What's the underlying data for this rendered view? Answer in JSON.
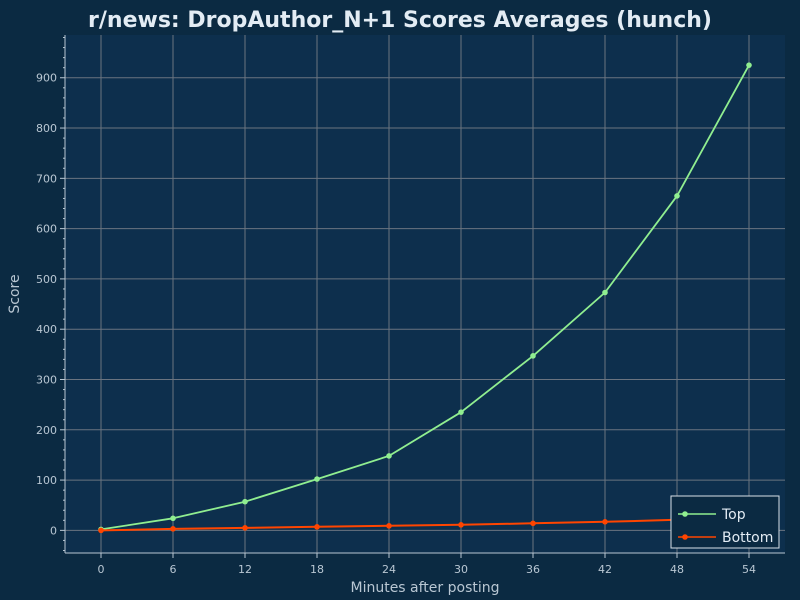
{
  "chart_data": {
    "type": "line",
    "title": "r/news: DropAuthor_N+1 Scores Averages (hunch)",
    "xlabel": "Minutes after posting",
    "ylabel": "Score",
    "x": [
      0,
      6,
      12,
      18,
      24,
      30,
      36,
      42,
      48,
      54
    ],
    "x_ticks": [
      0,
      6,
      12,
      18,
      24,
      30,
      36,
      42,
      48,
      54
    ],
    "y_ticks": [
      0,
      100,
      200,
      300,
      400,
      500,
      600,
      700,
      800,
      900
    ],
    "xlim": [
      -3,
      57
    ],
    "ylim": [
      -45,
      985
    ],
    "grid": true,
    "legend_position": "bottom-right",
    "series": [
      {
        "name": "Top",
        "color": "#90ee90",
        "values": [
          2,
          24,
          57,
          102,
          148,
          235,
          347,
          473,
          665,
          925
        ]
      },
      {
        "name": "Bottom",
        "color": "#ff4500",
        "values": [
          0,
          3,
          5,
          7,
          9,
          11,
          14,
          17,
          21,
          27
        ]
      }
    ]
  },
  "colors": {
    "page_background": "#0b2a42",
    "plot_background": "#0d2f4d",
    "grid": "#6a7480",
    "axis_text": "#b9c7d3",
    "title_text": "#e3ecf4"
  }
}
